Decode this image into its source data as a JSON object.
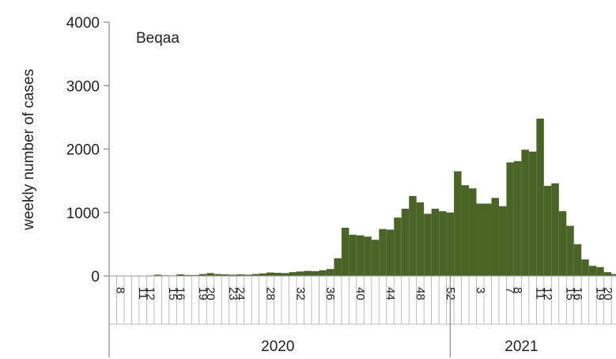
{
  "chart_data": {
    "type": "bar",
    "annotation": "Beqaa",
    "ylabel": "weekly number of cases",
    "ylim": [
      0,
      4000
    ],
    "yticks": [
      0,
      1000,
      2000,
      3000,
      4000
    ],
    "year_labels": [
      {
        "label": "2020",
        "from_index": 0,
        "to_index": 45
      },
      {
        "label": "2021",
        "from_index": 45,
        "to_index": 65
      }
    ],
    "color": "#4a6425",
    "categories": [
      "8",
      "9",
      "10",
      "11",
      "12",
      "13",
      "14",
      "15",
      "16",
      "17",
      "18",
      "19",
      "20",
      "21",
      "22",
      "23",
      "24",
      "25",
      "26",
      "27",
      "28",
      "29",
      "30",
      "31",
      "32",
      "33",
      "34",
      "35",
      "36",
      "37",
      "38",
      "39",
      "40",
      "41",
      "42",
      "43",
      "44",
      "45",
      "46",
      "47",
      "48",
      "49",
      "50",
      "51",
      "52",
      "53",
      "1",
      "2",
      "3",
      "4",
      "5",
      "6",
      "7",
      "8",
      "9",
      "10",
      "11",
      "12",
      "13",
      "14",
      "15",
      "16",
      "17",
      "18",
      "19",
      "20",
      "21",
      "22",
      "23"
    ],
    "tick_labels": [
      "8",
      "12",
      "16",
      "20",
      "24",
      "28",
      "32",
      "36",
      "40",
      "44",
      "48",
      "52",
      "3",
      "7",
      "11",
      "15",
      "19",
      "23"
    ],
    "values": [
      3,
      3,
      3,
      5,
      5,
      8,
      20,
      10,
      8,
      25,
      15,
      15,
      30,
      45,
      30,
      25,
      20,
      25,
      20,
      30,
      40,
      55,
      50,
      45,
      60,
      70,
      80,
      75,
      90,
      110,
      280,
      760,
      650,
      640,
      620,
      570,
      740,
      730,
      920,
      1060,
      1260,
      1160,
      980,
      1060,
      1020,
      1000,
      1650,
      1430,
      1380,
      1140,
      1140,
      1230,
      1100,
      1790,
      1810,
      1990,
      1960,
      2480,
      1420,
      1460,
      1020,
      790,
      500,
      260,
      160,
      140,
      60,
      30,
      10
    ]
  }
}
